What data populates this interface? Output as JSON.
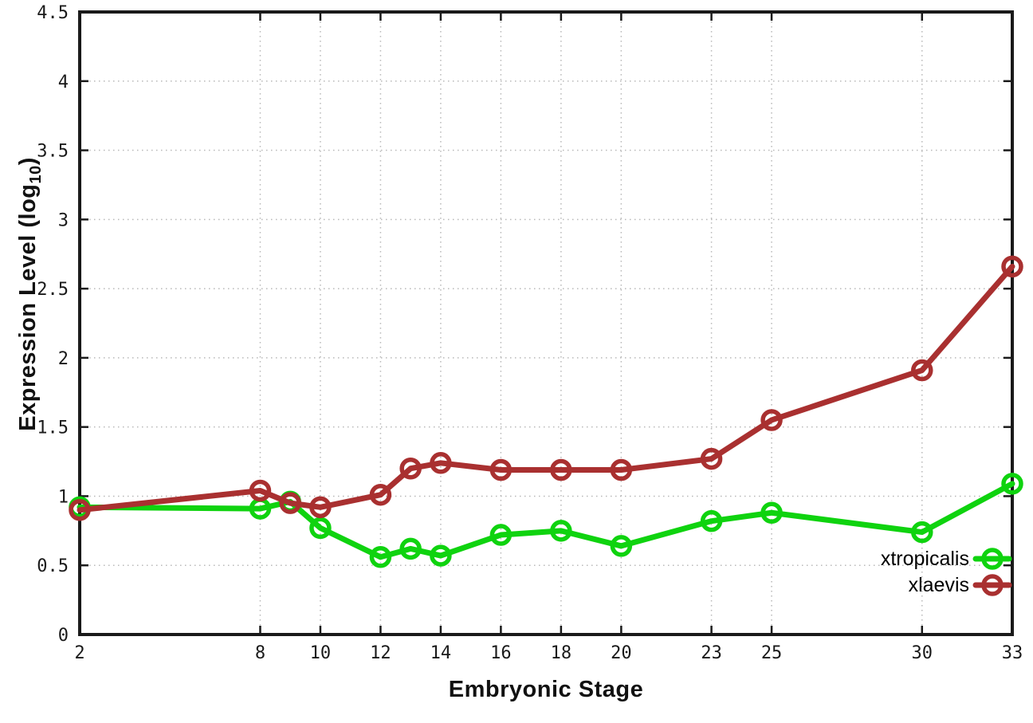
{
  "chart_data": {
    "type": "line",
    "title": "",
    "xlabel": "Embryonic Stage",
    "ylabel": "Expression Level (log10)",
    "ylabel_main": "Expression Level (log",
    "ylabel_sub": "10",
    "ylabel_end": ")",
    "xlim": [
      2,
      33
    ],
    "ylim": [
      0,
      4.5
    ],
    "x_ticks": [
      2,
      8,
      10,
      12,
      14,
      16,
      18,
      20,
      23,
      25,
      30,
      33
    ],
    "y_ticks": [
      0,
      0.5,
      1,
      1.5,
      2,
      2.5,
      3,
      3.5,
      4,
      4.5
    ],
    "grid": true,
    "legend_position": "inside-bottom-right",
    "x": [
      2,
      8,
      9,
      10,
      12,
      13,
      14,
      16,
      18,
      20,
      23,
      25,
      30,
      33
    ],
    "series": [
      {
        "name": "xtropicalis",
        "color": "#0fd30f",
        "values": [
          0.92,
          0.91,
          0.96,
          0.77,
          0.56,
          0.62,
          0.57,
          0.72,
          0.75,
          0.64,
          0.82,
          0.88,
          0.74,
          1.09
        ]
      },
      {
        "name": "xlaevis",
        "color": "#a93030",
        "values": [
          0.9,
          1.04,
          0.95,
          0.92,
          1.01,
          1.2,
          1.24,
          1.19,
          1.19,
          1.19,
          1.27,
          1.55,
          1.91,
          2.66
        ]
      }
    ]
  },
  "colors": {
    "background": "#ffffff",
    "axis_border": "#1a1a1a",
    "grid": "#b8b8b8",
    "tick_label": "#1a1a1a",
    "legend_text": "#000000"
  }
}
